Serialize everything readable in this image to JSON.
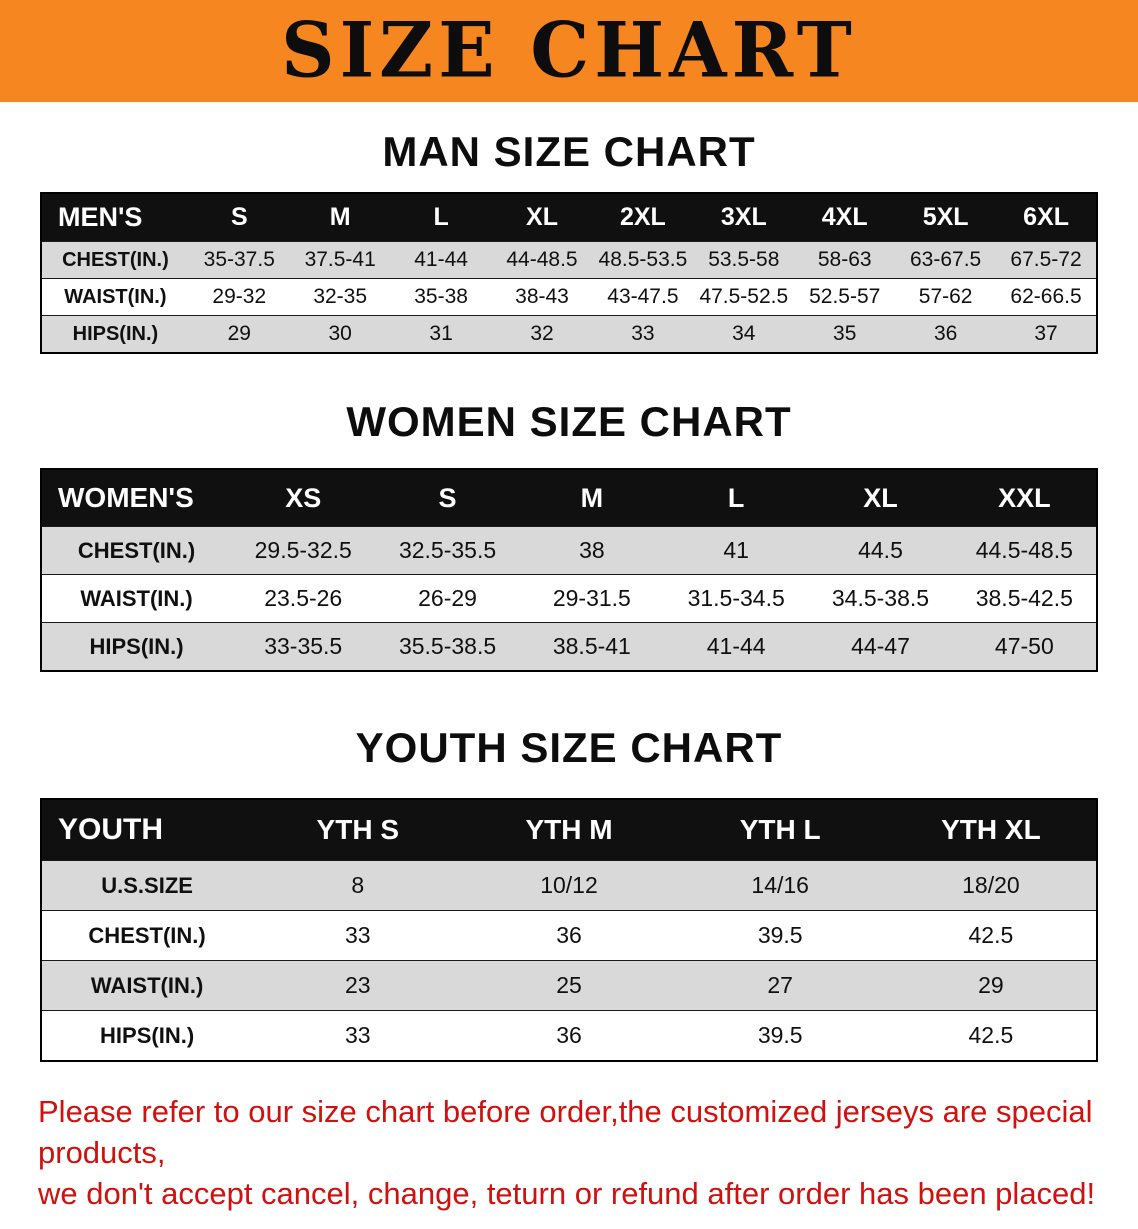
{
  "banner": {
    "title": "SIZE CHART",
    "bg_color": "#f6861f"
  },
  "sections": [
    {
      "id": "men",
      "heading": "MAN SIZE CHART",
      "corner": "MEN'S",
      "columns": [
        "S",
        "M",
        "L",
        "XL",
        "2XL",
        "3XL",
        "4XL",
        "5XL",
        "6XL"
      ],
      "rows": [
        {
          "label": "CHEST(IN.)",
          "values": [
            "35-37.5",
            "37.5-41",
            "41-44",
            "44-48.5",
            "48.5-53.5",
            "53.5-58",
            "58-63",
            "63-67.5",
            "67.5-72"
          ]
        },
        {
          "label": "WAIST(IN.)",
          "values": [
            "29-32",
            "32-35",
            "35-38",
            "38-43",
            "43-47.5",
            "47.5-52.5",
            "52.5-57",
            "57-62",
            "62-66.5"
          ]
        },
        {
          "label": "HIPS(IN.)",
          "values": [
            "29",
            "30",
            "31",
            "32",
            "33",
            "34",
            "35",
            "36",
            "37"
          ]
        }
      ]
    },
    {
      "id": "women",
      "heading": "WOMEN SIZE CHART",
      "corner": "WOMEN'S",
      "columns": [
        "XS",
        "S",
        "M",
        "L",
        "XL",
        "XXL"
      ],
      "rows": [
        {
          "label": "CHEST(IN.)",
          "values": [
            "29.5-32.5",
            "32.5-35.5",
            "38",
            "41",
            "44.5",
            "44.5-48.5"
          ]
        },
        {
          "label": "WAIST(IN.)",
          "values": [
            "23.5-26",
            "26-29",
            "29-31.5",
            "31.5-34.5",
            "34.5-38.5",
            "38.5-42.5"
          ]
        },
        {
          "label": "HIPS(IN.)",
          "values": [
            "33-35.5",
            "35.5-38.5",
            "38.5-41",
            "41-44",
            "44-47",
            "47-50"
          ]
        }
      ]
    },
    {
      "id": "youth",
      "heading": "YOUTH SIZE CHART",
      "corner": "YOUTH",
      "columns": [
        "YTH S",
        "YTH M",
        "YTH L",
        "YTH XL"
      ],
      "rows": [
        {
          "label": "U.S.SIZE",
          "values": [
            "8",
            "10/12",
            "14/16",
            "18/20"
          ]
        },
        {
          "label": "CHEST(IN.)",
          "values": [
            "33",
            "36",
            "39.5",
            "42.5"
          ]
        },
        {
          "label": "WAIST(IN.)",
          "values": [
            "23",
            "25",
            "27",
            "29"
          ]
        },
        {
          "label": "HIPS(IN.)",
          "values": [
            "33",
            "36",
            "39.5",
            "42.5"
          ]
        }
      ]
    }
  ],
  "disclaimer": {
    "line1": "Please refer to our size chart before order,the customized jerseys are special products,",
    "line2": "we don't accept cancel, change, teturn or refund after order has been placed!"
  },
  "colors": {
    "banner_bg": "#f6861f",
    "table_header_bg": "#101010",
    "row_alt_bg": "#d9d9d9",
    "disclaimer_red": "#cf1110"
  }
}
